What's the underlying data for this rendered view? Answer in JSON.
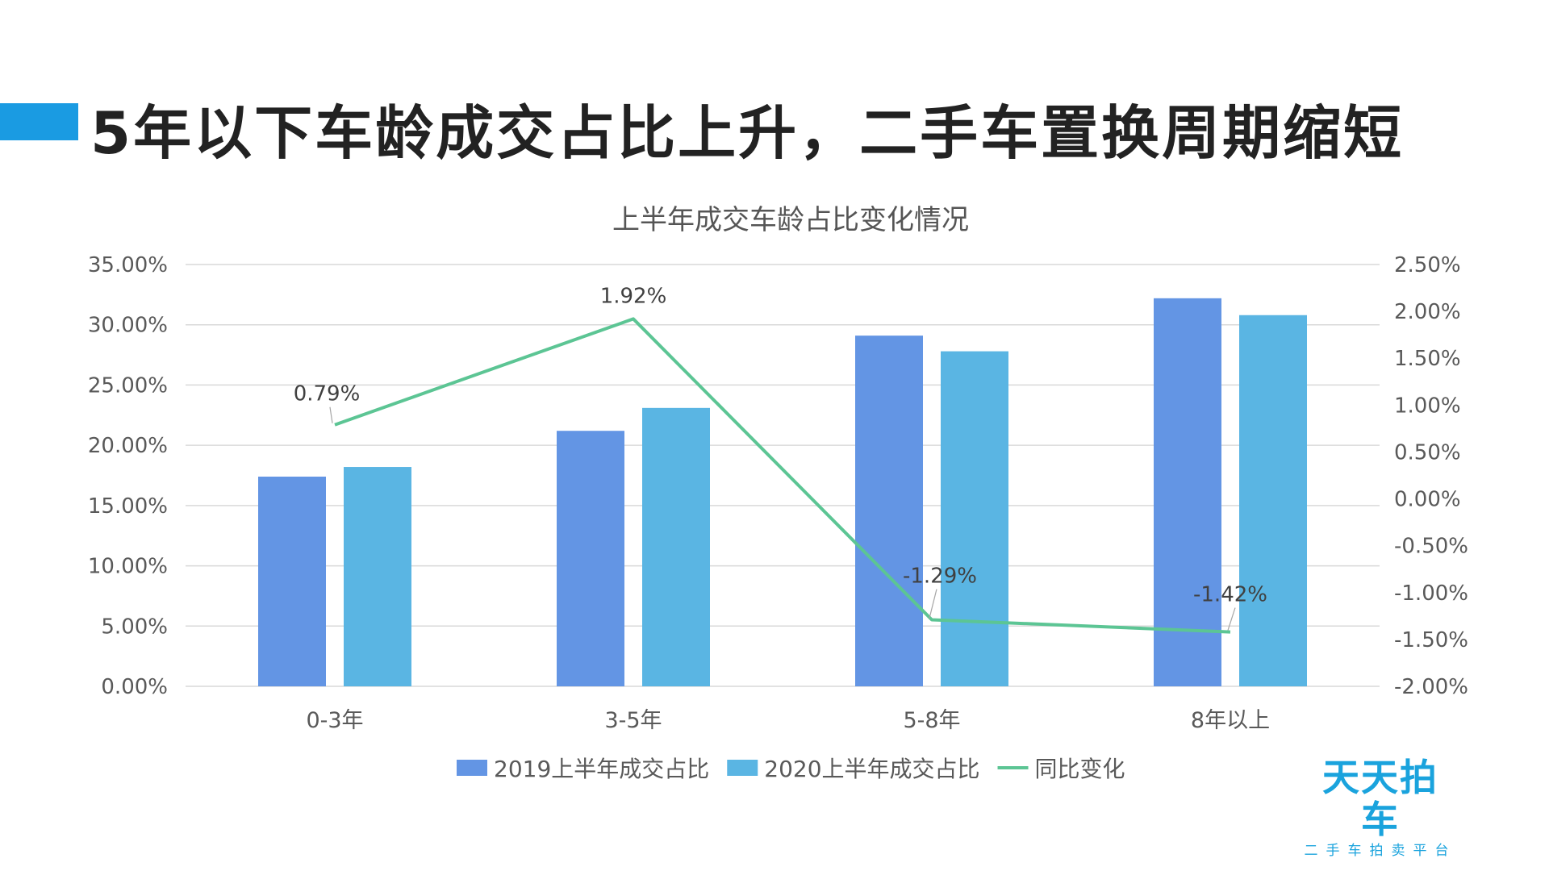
{
  "header": {
    "title": "5年以下车龄成交占比上升，二手车置换周期缩短",
    "accent_color": "#1a9be2"
  },
  "brand": {
    "name": "天天拍车",
    "tagline": "二手车拍卖平台",
    "color": "#1aa3dd"
  },
  "chart_data": {
    "type": "bar",
    "title": "上半年成交车龄占比变化情况",
    "categories": [
      "0-3年",
      "3-5年",
      "5-8年",
      "8年以上"
    ],
    "series": [
      {
        "name": "2019上半年成交占比",
        "type": "bar",
        "axis": "left",
        "color": "#6395e4",
        "values": [
          17.4,
          21.2,
          29.1,
          32.2
        ]
      },
      {
        "name": "2020上半年成交占比",
        "type": "bar",
        "axis": "left",
        "color": "#5ab5e3",
        "values": [
          18.2,
          23.1,
          27.8,
          30.8
        ]
      },
      {
        "name": "同比变化",
        "type": "line",
        "axis": "right",
        "color": "#5cc594",
        "values": [
          0.79,
          1.92,
          -1.29,
          -1.42
        ],
        "labels": [
          "0.79%",
          "1.92%",
          "-1.29%",
          "-1.42%"
        ]
      }
    ],
    "y_left": {
      "min": 0,
      "max": 35,
      "step": 5,
      "ticks": [
        "0.00%",
        "5.00%",
        "10.00%",
        "15.00%",
        "20.00%",
        "25.00%",
        "30.00%",
        "35.00%"
      ]
    },
    "y_right": {
      "min": -2,
      "max": 2.5,
      "step": 0.5,
      "ticks": [
        "-2.00%",
        "-1.50%",
        "-1.00%",
        "-0.50%",
        "0.00%",
        "0.50%",
        "1.00%",
        "1.50%",
        "2.00%",
        "2.50%"
      ]
    },
    "grid": true,
    "legend_position": "bottom"
  }
}
